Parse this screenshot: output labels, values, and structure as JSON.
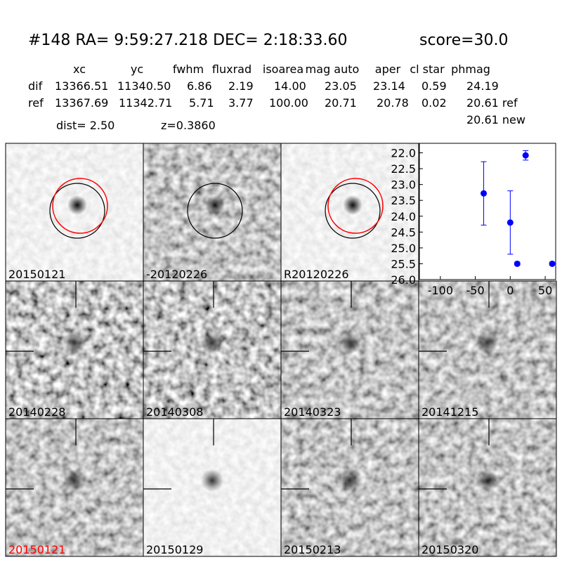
{
  "header": {
    "title": "#148   RA= 9:59:27.218 DEC= 2:18:33.60",
    "score": "score=30.0"
  },
  "table": {
    "columns": [
      "xc",
      "yc",
      "fwhm",
      "fluxrad",
      "isoarea",
      "mag auto",
      "aper",
      "cl star",
      "phmag"
    ],
    "rows": [
      [
        "dif",
        "13366.51",
        "11340.50",
        "6.86",
        "2.19",
        "14.00",
        "23.05",
        "23.14",
        "0.59",
        "24.19"
      ],
      [
        "ref",
        "13367.69",
        "11342.71",
        "5.71",
        "3.77",
        "100.00",
        "20.71",
        "20.78",
        "0.02",
        "20.61 ref"
      ]
    ],
    "extra": "20.61 new"
  },
  "dist": "dist=  2.50",
  "z": "z=0.3860",
  "panels": [
    "20150121",
    "-20120226",
    "R20120226",
    "20140228",
    "20140308",
    "20140323",
    "20141215",
    "20150121",
    "20150129",
    "20150213",
    "20150320"
  ],
  "chart_data": {
    "type": "errorbar",
    "color": "#0000ff",
    "x": [
      -38,
      0,
      10,
      22,
      60
    ],
    "values": [
      23.28,
      24.2,
      25.5,
      22.08,
      25.5
    ],
    "errors": [
      1.0,
      1.0,
      0.05,
      0.15,
      0.05
    ],
    "xlim": [
      -130,
      65
    ],
    "ylim": [
      26.0,
      21.7
    ],
    "xticks": [
      -100,
      -50,
      0,
      50
    ],
    "yticks": [
      {
        "value": 22.0,
        "label": "22.0"
      },
      {
        "value": 22.5,
        "label": "22.5"
      },
      {
        "value": 23.0,
        "label": "23.0"
      },
      {
        "value": 23.5,
        "label": "23.5"
      },
      {
        "value": 24.0,
        "label": "24.0"
      },
      {
        "value": 24.5,
        "label": "24.5"
      },
      {
        "value": 25.0,
        "label": "25.0"
      },
      {
        "value": 25.5,
        "label": "25.5"
      },
      {
        "value": 26.0,
        "label": "26.0"
      }
    ]
  }
}
